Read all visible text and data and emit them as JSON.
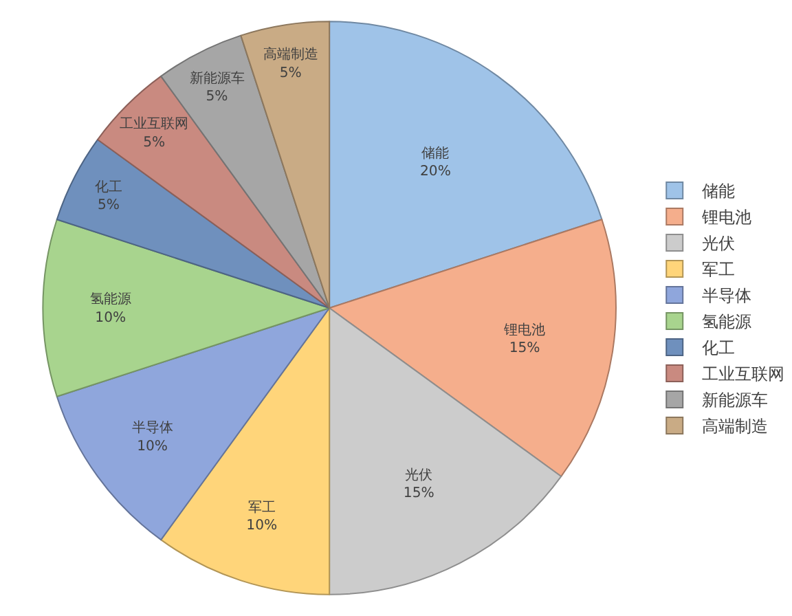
{
  "chart_data": {
    "type": "pie",
    "categories": [
      "储能",
      "锂电池",
      "光伏",
      "军工",
      "半导体",
      "氢能源",
      "化工",
      "工业互联网",
      "新能源车",
      "高端制造"
    ],
    "values": [
      20,
      15,
      15,
      10,
      10,
      10,
      5,
      5,
      5,
      5
    ],
    "value_labels": [
      "20%",
      "15%",
      "15%",
      "10%",
      "10%",
      "10%",
      "5%",
      "5%",
      "5%",
      "5%"
    ],
    "colors": [
      "#9fc3e8",
      "#f5ae8c",
      "#cccccc",
      "#ffd57a",
      "#8fa6dc",
      "#a8d48e",
      "#6f90bd",
      "#c98a80",
      "#a6a6a6",
      "#c9ab85"
    ],
    "legend": "right"
  }
}
